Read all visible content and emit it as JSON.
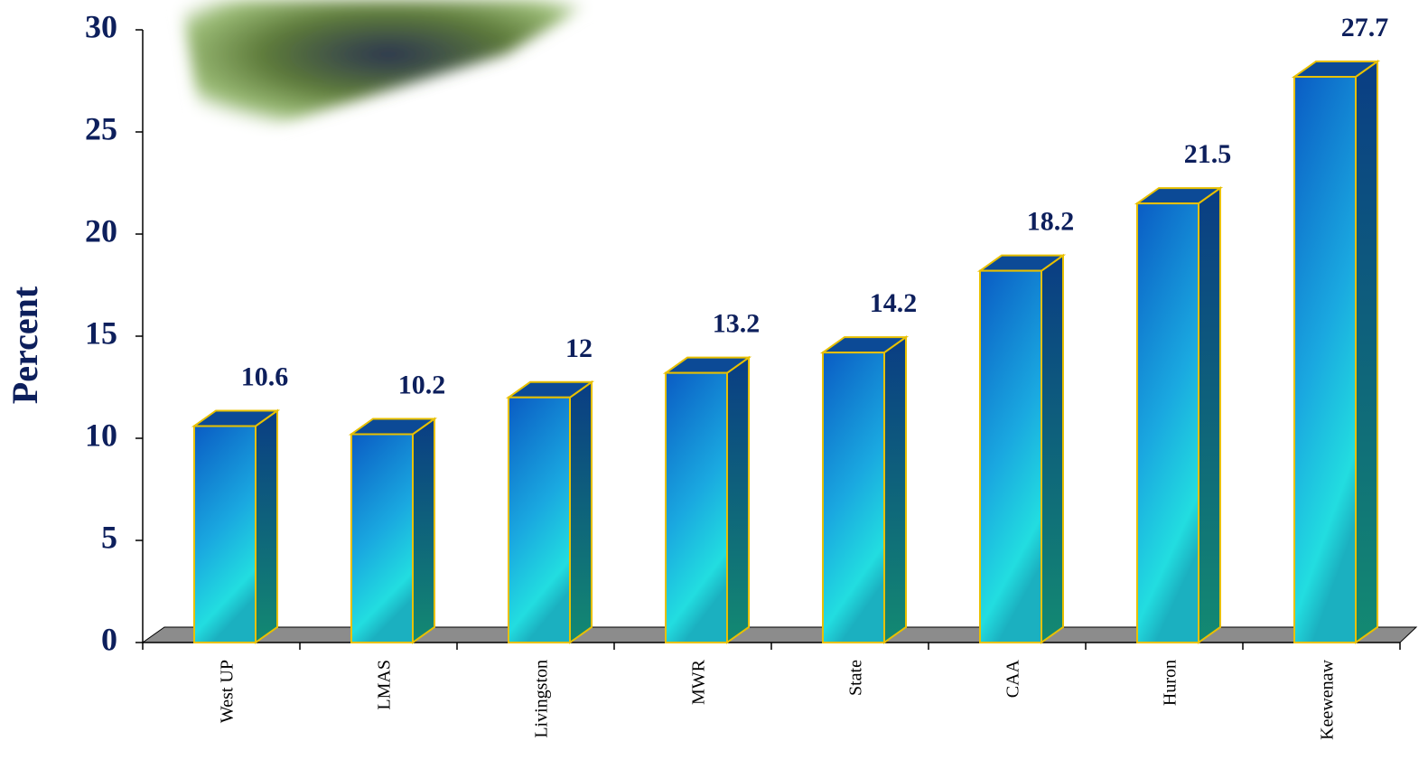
{
  "chart_data": {
    "type": "bar",
    "y_label": "Percent",
    "categories": [
      "West UP",
      "LMAS",
      "Livingston",
      "MWR",
      "State",
      "CAA",
      "Huron",
      "Keewenaw"
    ],
    "values": [
      10.6,
      10.2,
      12,
      13.2,
      14.2,
      18.2,
      21.5,
      27.7
    ],
    "color": "#0a5cc4",
    "ylim": [
      0,
      30
    ],
    "yticks": [
      0,
      5,
      10,
      15,
      20,
      25,
      30
    ]
  }
}
